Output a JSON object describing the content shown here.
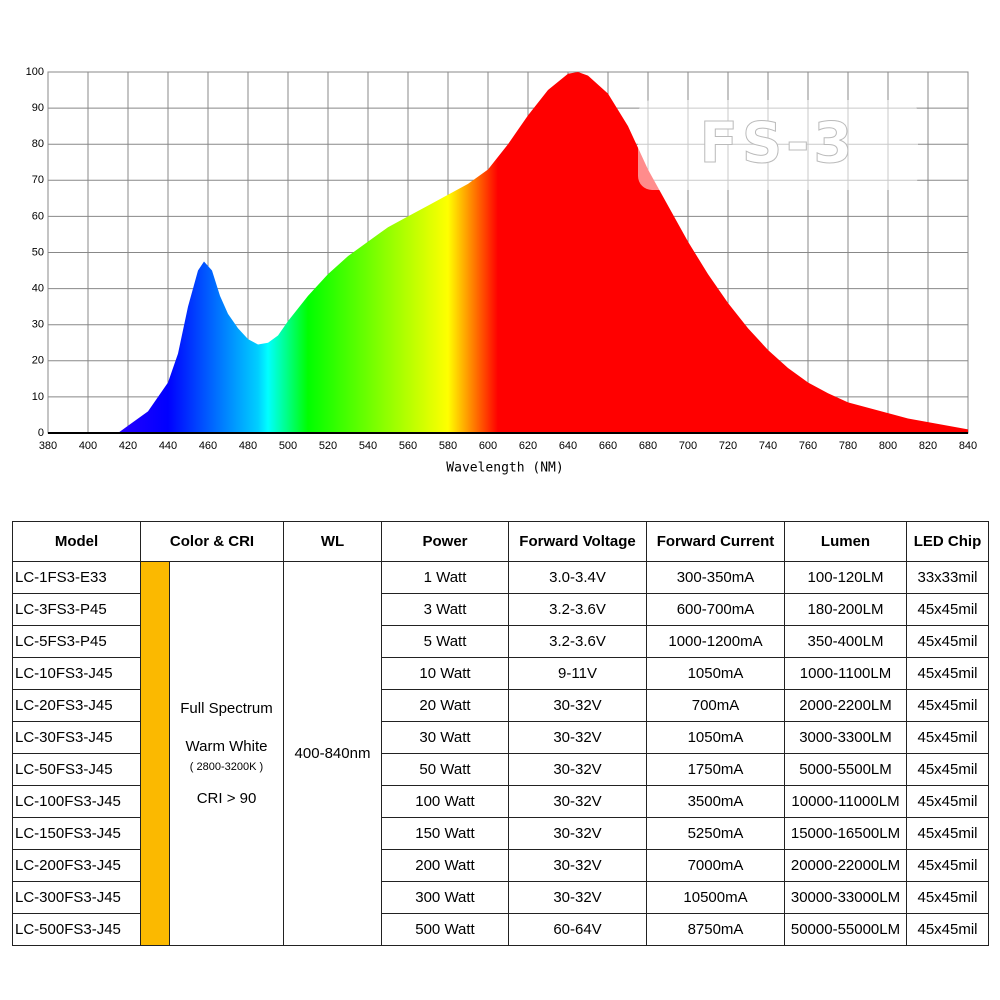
{
  "chart_data": {
    "type": "area",
    "watermark": "FS-3",
    "x_label": "Wavelength (NM)",
    "x": [
      415,
      420,
      430,
      440,
      445,
      450,
      455,
      458,
      462,
      466,
      470,
      475,
      480,
      485,
      490,
      495,
      500,
      510,
      520,
      530,
      540,
      550,
      560,
      570,
      580,
      590,
      600,
      610,
      620,
      630,
      640,
      645,
      650,
      660,
      670,
      680,
      690,
      700,
      710,
      720,
      730,
      740,
      750,
      760,
      770,
      780,
      790,
      800,
      810,
      820,
      830,
      840
    ],
    "values": [
      0,
      2,
      6,
      14,
      22,
      35,
      45,
      47.5,
      45,
      38,
      33,
      29,
      26,
      24.5,
      25,
      27,
      31,
      38,
      44,
      49,
      53,
      57,
      60,
      63,
      66,
      69,
      73,
      80,
      88,
      95,
      99.5,
      100,
      99,
      94,
      85,
      73,
      63,
      53,
      44,
      36,
      29,
      23,
      18,
      14,
      11,
      8.5,
      7,
      5.5,
      4,
      3,
      2,
      1
    ],
    "xlim": [
      380,
      840
    ],
    "xticks": [
      380,
      400,
      420,
      440,
      460,
      480,
      500,
      520,
      540,
      560,
      580,
      600,
      620,
      640,
      660,
      680,
      700,
      720,
      740,
      760,
      780,
      800,
      820,
      840
    ],
    "ylim": [
      0,
      100
    ],
    "yticks": [
      0,
      10,
      20,
      30,
      40,
      50,
      60,
      70,
      80,
      90,
      100
    ],
    "grid": true
  },
  "table": {
    "header": [
      "Model",
      "Color & CRI",
      "WL",
      "Power",
      "Forward Voltage",
      "Forward Current",
      "Lumen",
      "LED Chip"
    ],
    "color_cri": [
      "Full Spectrum",
      "Warm White",
      "( 2800-3200K )",
      "CRI > 90"
    ],
    "wl": "400-840nm",
    "rows": [
      [
        "LC-1FS3-E33",
        "1 Watt",
        "3.0-3.4V",
        "300-350mA",
        "100-120LM",
        "33x33mil"
      ],
      [
        "LC-3FS3-P45",
        "3 Watt",
        "3.2-3.6V",
        "600-700mA",
        "180-200LM",
        "45x45mil"
      ],
      [
        "LC-5FS3-P45",
        "5 Watt",
        "3.2-3.6V",
        "1000-1200mA",
        "350-400LM",
        "45x45mil"
      ],
      [
        "LC-10FS3-J45",
        "10 Watt",
        "9-11V",
        "1050mA",
        "1000-1100LM",
        "45x45mil"
      ],
      [
        "LC-20FS3-J45",
        "20 Watt",
        "30-32V",
        "700mA",
        "2000-2200LM",
        "45x45mil"
      ],
      [
        "LC-30FS3-J45",
        "30 Watt",
        "30-32V",
        "1050mA",
        "3000-3300LM",
        "45x45mil"
      ],
      [
        "LC-50FS3-J45",
        "50 Watt",
        "30-32V",
        "1750mA",
        "5000-5500LM",
        "45x45mil"
      ],
      [
        "LC-100FS3-J45",
        "100 Watt",
        "30-32V",
        "3500mA",
        "10000-11000LM",
        "45x45mil"
      ],
      [
        "LC-150FS3-J45",
        "150 Watt",
        "30-32V",
        "5250mA",
        "15000-16500LM",
        "45x45mil"
      ],
      [
        "LC-200FS3-J45",
        "200 Watt",
        "30-32V",
        "7000mA",
        "20000-22000LM",
        "45x45mil"
      ],
      [
        "LC-300FS3-J45",
        "300 Watt",
        "30-32V",
        "10500mA",
        "30000-33000LM",
        "45x45mil"
      ],
      [
        "LC-500FS3-J45",
        "500 Watt",
        "60-64V",
        "8750mA",
        "50000-55000LM",
        "45x45mil"
      ]
    ]
  }
}
